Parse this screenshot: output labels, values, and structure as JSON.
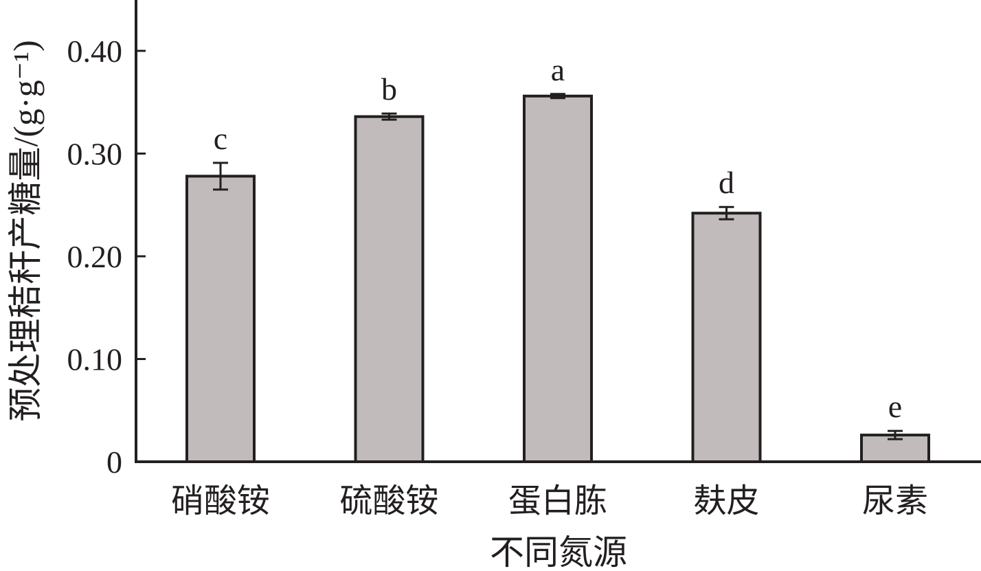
{
  "chart_data": {
    "type": "bar",
    "title": "",
    "xlabel": "不同氮源",
    "ylabel": "预处理秸秆产糖量/(g·g⁻¹)",
    "ylim": [
      0,
      0.4
    ],
    "yticks": [
      {
        "value": 0,
        "label": "0"
      },
      {
        "value": 0.1,
        "label": "0.10"
      },
      {
        "value": 0.2,
        "label": "0.20"
      },
      {
        "value": 0.3,
        "label": "0.30"
      },
      {
        "value": 0.4,
        "label": "0.40"
      }
    ],
    "categories": [
      "硝酸铵",
      "硫酸铵",
      "蛋白胨",
      "麸皮",
      "尿素"
    ],
    "values": [
      0.278,
      0.336,
      0.356,
      0.242,
      0.026
    ],
    "errors": [
      0.013,
      0.003,
      0.002,
      0.006,
      0.004
    ],
    "significance": [
      "c",
      "b",
      "a",
      "d",
      "e"
    ],
    "grid": false,
    "colors": {
      "bar_fill": "#c1bcbb",
      "bar_stroke": "#231f20",
      "axis": "#231f20"
    }
  }
}
